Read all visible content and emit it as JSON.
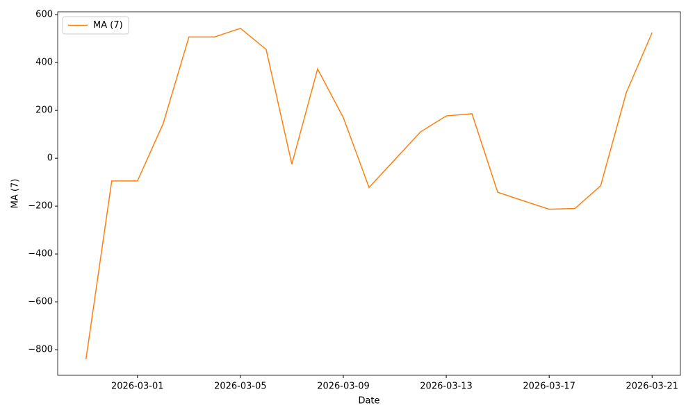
{
  "chart_data": {
    "type": "line",
    "x": [
      "2026-02-27",
      "2026-02-28",
      "2026-03-01",
      "2026-03-02",
      "2026-03-03",
      "2026-03-04",
      "2026-03-05",
      "2026-03-06",
      "2026-03-07",
      "2026-03-08",
      "2026-03-09",
      "2026-03-10",
      "2026-03-11",
      "2026-03-12",
      "2026-03-13",
      "2026-03-14",
      "2026-03-15",
      "2026-03-16",
      "2026-03-17",
      "2026-03-18",
      "2026-03-19",
      "2026-03-20",
      "2026-03-21"
    ],
    "series": [
      {
        "name": "MA (7)",
        "color": "#ff7f0e",
        "values": [
          -840,
          -95,
          -95,
          145,
          507,
          507,
          543,
          455,
          -25,
          373,
          170,
          -122,
          -6,
          110,
          177,
          186,
          -142,
          -178,
          -213,
          -210,
          -115,
          275,
          525
        ]
      }
    ],
    "xlabel": "Date",
    "ylabel": "MA (7)",
    "xlim": [
      "2026-02-25T21:36",
      "2026-03-22T02:24"
    ],
    "xticks": [
      "2026-03-01",
      "2026-03-05",
      "2026-03-09",
      "2026-03-13",
      "2026-03-17",
      "2026-03-21"
    ],
    "ylim": [
      -907,
      612
    ],
    "yticks": [
      {
        "value": -800,
        "label": "−800"
      },
      {
        "value": -600,
        "label": "−600"
      },
      {
        "value": -400,
        "label": "−400"
      },
      {
        "value": -200,
        "label": "−200"
      },
      0,
      200,
      400,
      600
    ],
    "legend": "upper left",
    "grid": false
  }
}
